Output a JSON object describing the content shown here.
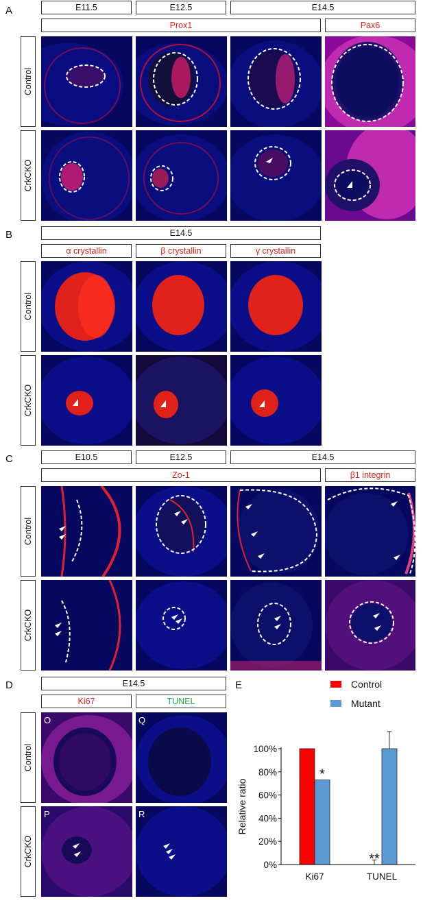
{
  "panels": {
    "A": {
      "letter": "A",
      "stages": [
        "E11.5",
        "E12.5",
        "E14.5"
      ],
      "markers": [
        "Prox1",
        "Pax6"
      ],
      "rows": [
        "Control",
        "CrkCKO"
      ]
    },
    "B": {
      "letter": "B",
      "stage": "E14.5",
      "markers": [
        "α crystallin",
        "β crystallin",
        "γ crystallin"
      ],
      "rows": [
        "Control",
        "CrkCKO"
      ]
    },
    "C": {
      "letter": "C",
      "stages": [
        "E10.5",
        "E12.5",
        "E14.5"
      ],
      "markers": [
        "Zo-1",
        "β1 integrin"
      ],
      "rows": [
        "Control",
        "CrkCKO"
      ]
    },
    "D": {
      "letter": "D",
      "stage": "E14.5",
      "markers": [
        "Ki67",
        "TUNEL"
      ],
      "rows": [
        "Control",
        "CrkCKO"
      ],
      "image_letters": [
        "O",
        "Q",
        "P",
        "R"
      ]
    },
    "E": {
      "letter": "E"
    }
  },
  "colors": {
    "control": "#ff0000",
    "mutant": "#5b9bd5",
    "marker_red": "#e2231a",
    "marker_green": "#1aa84a"
  },
  "chart_data": {
    "type": "bar",
    "categories": [
      "Ki67",
      "TUNEL"
    ],
    "series": [
      {
        "name": "Control",
        "values": [
          100,
          0
        ],
        "errors": [
          1,
          4
        ]
      },
      {
        "name": "Mutant",
        "values": [
          73,
          100
        ],
        "errors": [
          1,
          15
        ]
      }
    ],
    "ylabel": "Relative ratio",
    "ylim": [
      0,
      100
    ],
    "yticks": [
      "0%",
      "20%",
      "40%",
      "60%",
      "80%",
      "100%"
    ],
    "annotations": [
      "*",
      "**"
    ],
    "legend": "top-right"
  }
}
